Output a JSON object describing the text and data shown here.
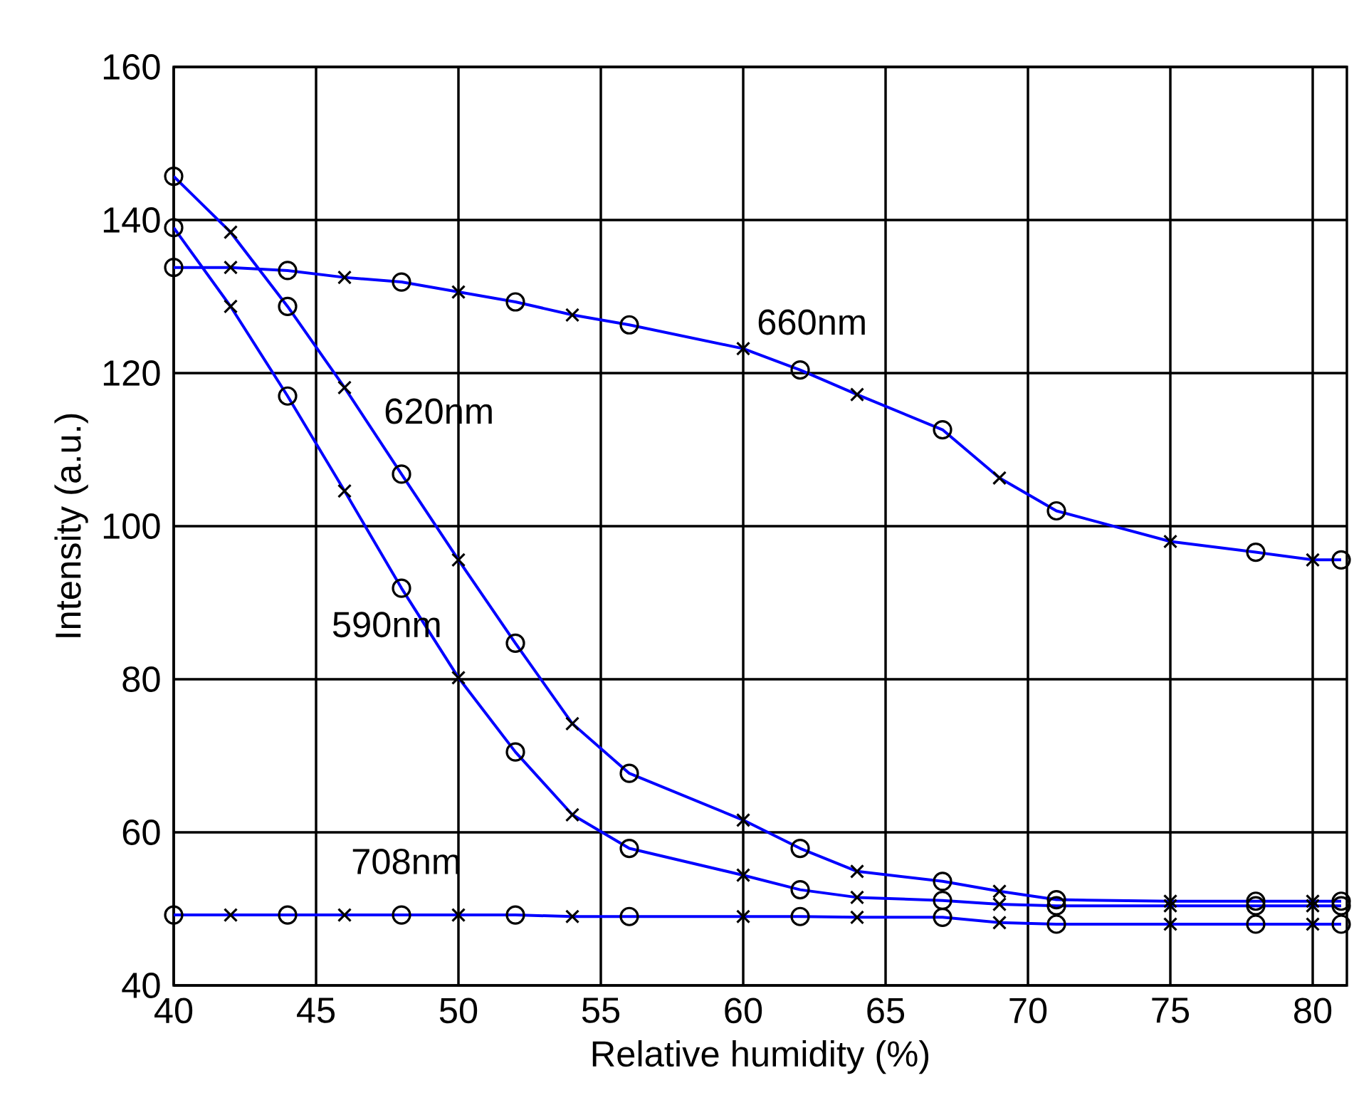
{
  "chart_data": {
    "type": "line",
    "xlabel": "Relative humidity (%)",
    "ylabel": "Intensity (a.u.)",
    "xlim": [
      40,
      81.2
    ],
    "ylim": [
      40,
      160
    ],
    "xticks": [
      40,
      45,
      50,
      55,
      60,
      65,
      70,
      75,
      80
    ],
    "yticks": [
      40,
      60,
      80,
      100,
      120,
      140,
      160
    ],
    "grid": true,
    "x": [
      40,
      42,
      44,
      46,
      48,
      50,
      52,
      54,
      56,
      60,
      62,
      64,
      67,
      69,
      71,
      75,
      78,
      80,
      81
    ],
    "series": [
      {
        "name": "660nm",
        "marker": "none",
        "line_style": "solid",
        "color": "#0000ff",
        "values": [
          133.8,
          133.8,
          133.4,
          132.5,
          131.9,
          130.6,
          129.3,
          127.6,
          126.3,
          123.2,
          120.4,
          117.2,
          112.6,
          106.3,
          102.0,
          98.0,
          96.6,
          95.6,
          95.6
        ]
      },
      {
        "name": "620nm",
        "marker": "none",
        "line_style": "solid",
        "color": "#0000ff",
        "values": [
          145.7,
          138.4,
          128.7,
          118.1,
          106.8,
          95.6,
          84.7,
          74.2,
          67.7,
          61.6,
          57.9,
          54.9,
          53.6,
          52.3,
          51.2,
          51.0,
          51.0,
          51.0,
          51.0
        ]
      },
      {
        "name": "590nm",
        "marker": "none",
        "line_style": "solid",
        "color": "#0000ff",
        "values": [
          139.0,
          128.7,
          117.0,
          104.6,
          91.9,
          80.2,
          70.5,
          62.3,
          57.9,
          54.4,
          52.5,
          51.5,
          51.1,
          50.6,
          50.4,
          50.4,
          50.4,
          50.4,
          50.4
        ]
      },
      {
        "name": "708nm",
        "marker": "none",
        "line_style": "solid",
        "color": "#0000ff",
        "values": [
          49.2,
          49.2,
          49.2,
          49.2,
          49.2,
          49.2,
          49.2,
          49.0,
          49.0,
          49.0,
          49.0,
          48.9,
          48.9,
          48.2,
          48.0,
          48.0,
          48.0,
          48.0,
          48.0
        ]
      },
      {
        "type": "scatter",
        "marker": "circle",
        "color": "#000000",
        "x": [
          40,
          44,
          48,
          52,
          56,
          62,
          67,
          71,
          78,
          81
        ],
        "values": [
          133.8,
          133.4,
          131.9,
          129.3,
          126.3,
          120.4,
          112.6,
          102.0,
          96.6,
          95.6
        ]
      },
      {
        "type": "scatter",
        "marker": "cross",
        "color": "#000000",
        "x": [
          42,
          46,
          50,
          54,
          60,
          64,
          69,
          75,
          80
        ],
        "values": [
          133.8,
          132.5,
          130.6,
          127.6,
          123.2,
          117.2,
          106.3,
          98.0,
          95.6
        ]
      },
      {
        "type": "scatter",
        "marker": "circle",
        "color": "#000000",
        "x": [
          40,
          44,
          48,
          52,
          56,
          62,
          67,
          71,
          78,
          81
        ],
        "values": [
          145.7,
          128.7,
          106.8,
          84.7,
          67.7,
          57.9,
          53.6,
          51.2,
          51.0,
          51.0
        ]
      },
      {
        "type": "scatter",
        "marker": "cross",
        "color": "#000000",
        "x": [
          42,
          46,
          50,
          54,
          60,
          64,
          69,
          75,
          80
        ],
        "values": [
          138.4,
          118.1,
          95.6,
          74.2,
          61.6,
          54.9,
          52.3,
          51.0,
          51.0
        ]
      },
      {
        "type": "scatter",
        "marker": "circle",
        "color": "#000000",
        "x": [
          40,
          44,
          48,
          52,
          56,
          62,
          67,
          71,
          78,
          81
        ],
        "values": [
          139.0,
          117.0,
          91.9,
          70.5,
          57.9,
          52.5,
          51.1,
          50.4,
          50.4,
          50.4
        ]
      },
      {
        "type": "scatter",
        "marker": "cross",
        "color": "#000000",
        "x": [
          42,
          46,
          50,
          54,
          60,
          64,
          69,
          75,
          80
        ],
        "values": [
          128.7,
          104.6,
          80.2,
          62.3,
          54.4,
          51.5,
          50.6,
          50.4,
          50.4
        ]
      },
      {
        "type": "scatter",
        "marker": "circle",
        "color": "#000000",
        "x": [
          40,
          44,
          48,
          52,
          56,
          62,
          67,
          71,
          78,
          81
        ],
        "values": [
          49.2,
          49.2,
          49.2,
          49.2,
          49.0,
          49.0,
          48.9,
          48.0,
          48.0,
          48.0
        ]
      },
      {
        "type": "scatter",
        "marker": "cross",
        "color": "#000000",
        "x": [
          42,
          46,
          50,
          54,
          60,
          64,
          69,
          75,
          80
        ],
        "values": [
          49.2,
          49.2,
          49.2,
          49.0,
          49.0,
          48.9,
          48.2,
          48.0,
          48.0
        ]
      }
    ]
  }
}
